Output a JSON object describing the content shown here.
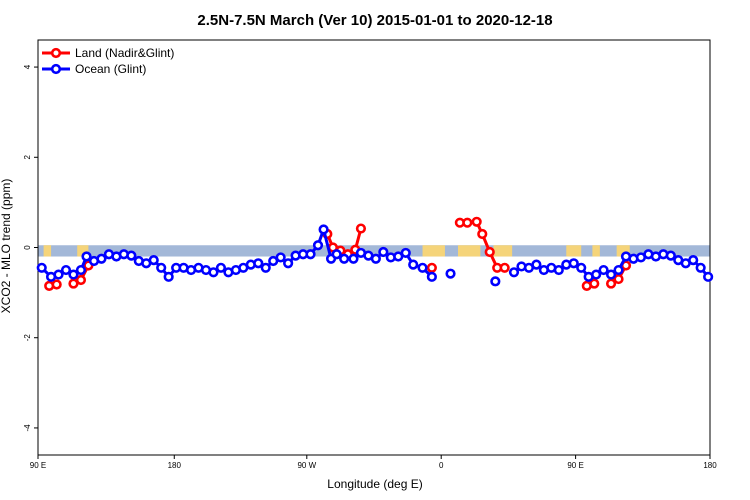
{
  "chart_data": {
    "type": "line",
    "title": "2.5N-7.5N March (Ver 10)   2015-01-01 to 2020-12-18",
    "xlabel": "Longitude (deg E)",
    "ylabel": "XCO2 - MLO trend (ppm)",
    "xlim": [
      0,
      360
    ],
    "ylim": [
      -4.6,
      4.6
    ],
    "x_ticks": [
      {
        "pos": 0,
        "label": "90 E"
      },
      {
        "pos": 73,
        "label": "180"
      },
      {
        "pos": 144,
        "label": "90 W"
      },
      {
        "pos": 216,
        "label": "0"
      },
      {
        "pos": 288,
        "label": "90 E"
      },
      {
        "pos": 360,
        "label": "180"
      }
    ],
    "y_ticks": [
      -4,
      -2,
      0,
      2,
      4
    ],
    "legend": [
      {
        "name": "Land (Nadir&Glint)",
        "color": "#ff0000"
      },
      {
        "name": "Ocean (Glint)",
        "color": "#0000ff"
      }
    ],
    "band": {
      "ymin": -0.2,
      "ymax": 0.05,
      "color": "#a3b8d8",
      "land_color": "#f5d47a"
    },
    "land_masses": [
      [
        3,
        7
      ],
      [
        21,
        27
      ],
      [
        206,
        218
      ],
      [
        225,
        237
      ],
      [
        244,
        254
      ],
      [
        283,
        291
      ],
      [
        297,
        301
      ],
      [
        310,
        317
      ]
    ],
    "series": [
      {
        "name": "Land (Nadir&Glint)",
        "color": "#ff0000",
        "segments": [
          [
            [
              6,
              -0.85
            ],
            [
              10,
              -0.82
            ]
          ],
          [
            [
              19,
              -0.8
            ],
            [
              23,
              -0.72
            ],
            [
              27,
              -0.4
            ]
          ],
          [
            [
              155,
              0.3
            ],
            [
              158,
              0.0
            ],
            [
              162,
              -0.07
            ],
            [
              166,
              -0.15
            ],
            [
              170,
              -0.05
            ],
            [
              173,
              0.42
            ]
          ],
          [
            [
              211,
              -0.45
            ]
          ],
          [
            [
              226,
              0.55
            ],
            [
              230,
              0.55
            ],
            [
              235,
              0.57
            ],
            [
              238,
              0.3
            ],
            [
              242,
              -0.1
            ],
            [
              246,
              -0.45
            ],
            [
              250,
              -0.45
            ]
          ],
          [
            [
              294,
              -0.85
            ],
            [
              298,
              -0.8
            ]
          ],
          [
            [
              307,
              -0.8
            ],
            [
              311,
              -0.7
            ],
            [
              315,
              -0.4
            ]
          ]
        ]
      },
      {
        "name": "Ocean (Glint)",
        "color": "#0000ff",
        "segments": [
          [
            [
              2,
              -0.45
            ],
            [
              7,
              -0.65
            ],
            [
              11,
              -0.6
            ],
            [
              15,
              -0.5
            ],
            [
              19,
              -0.6
            ],
            [
              23,
              -0.5
            ],
            [
              26,
              -0.2
            ],
            [
              30,
              -0.3
            ],
            [
              34,
              -0.25
            ],
            [
              38,
              -0.15
            ],
            [
              42,
              -0.2
            ],
            [
              46,
              -0.15
            ],
            [
              50,
              -0.18
            ],
            [
              54,
              -0.3
            ],
            [
              58,
              -0.35
            ],
            [
              62,
              -0.28
            ],
            [
              66,
              -0.45
            ],
            [
              70,
              -0.65
            ],
            [
              74,
              -0.45
            ],
            [
              78,
              -0.45
            ],
            [
              82,
              -0.5
            ],
            [
              86,
              -0.45
            ],
            [
              90,
              -0.5
            ],
            [
              94,
              -0.55
            ],
            [
              98,
              -0.45
            ],
            [
              102,
              -0.55
            ],
            [
              106,
              -0.5
            ],
            [
              110,
              -0.45
            ],
            [
              114,
              -0.38
            ],
            [
              118,
              -0.35
            ],
            [
              122,
              -0.45
            ],
            [
              126,
              -0.3
            ],
            [
              130,
              -0.22
            ],
            [
              134,
              -0.35
            ],
            [
              138,
              -0.18
            ],
            [
              142,
              -0.15
            ],
            [
              146,
              -0.15
            ],
            [
              150,
              0.05
            ],
            [
              153,
              0.4
            ],
            [
              157,
              -0.25
            ],
            [
              160,
              -0.15
            ],
            [
              164,
              -0.25
            ],
            [
              169,
              -0.25
            ],
            [
              173,
              -0.12
            ],
            [
              177,
              -0.18
            ],
            [
              181,
              -0.25
            ],
            [
              185,
              -0.1
            ],
            [
              189,
              -0.22
            ],
            [
              193,
              -0.2
            ],
            [
              197,
              -0.12
            ],
            [
              201,
              -0.38
            ],
            [
              206,
              -0.45
            ],
            [
              211,
              -0.65
            ]
          ],
          [
            [
              221,
              -0.58
            ]
          ],
          [
            [
              245,
              -0.75
            ]
          ],
          [
            [
              255,
              -0.55
            ],
            [
              259,
              -0.42
            ],
            [
              263,
              -0.45
            ],
            [
              267,
              -0.38
            ],
            [
              271,
              -0.5
            ],
            [
              275,
              -0.45
            ],
            [
              279,
              -0.5
            ],
            [
              283,
              -0.38
            ],
            [
              287,
              -0.35
            ],
            [
              291,
              -0.45
            ],
            [
              295,
              -0.65
            ],
            [
              299,
              -0.6
            ],
            [
              303,
              -0.5
            ],
            [
              307,
              -0.6
            ],
            [
              311,
              -0.5
            ],
            [
              315,
              -0.2
            ],
            [
              319,
              -0.25
            ],
            [
              323,
              -0.22
            ],
            [
              327,
              -0.15
            ],
            [
              331,
              -0.2
            ],
            [
              335,
              -0.15
            ],
            [
              339,
              -0.18
            ],
            [
              343,
              -0.28
            ],
            [
              347,
              -0.35
            ],
            [
              351,
              -0.28
            ],
            [
              355,
              -0.45
            ],
            [
              359,
              -0.65
            ]
          ]
        ]
      }
    ]
  }
}
